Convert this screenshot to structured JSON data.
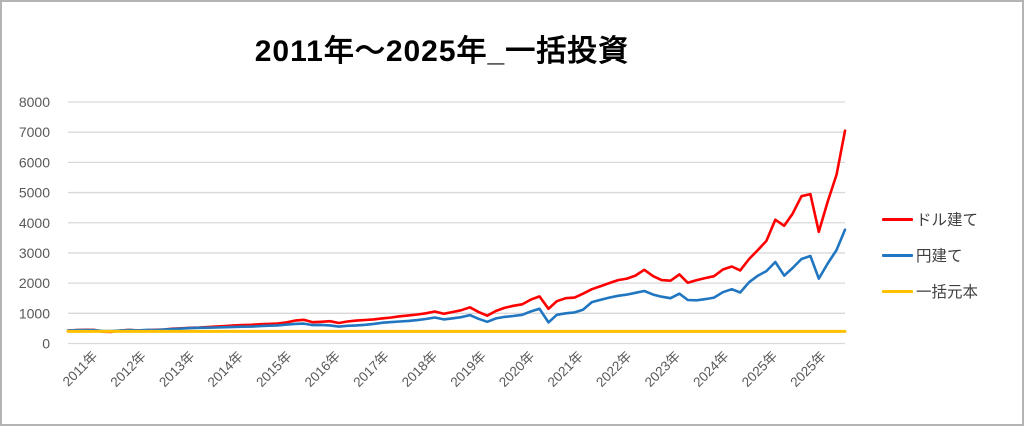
{
  "title": "2011年～2025年_一括投資",
  "colors": {
    "usd_line": "#ff0000",
    "jpy_line": "#2076c0",
    "principal_line": "#ffc000",
    "gridline": "#d9d9d9",
    "axis_text": "#595959",
    "legend_text": "#404040",
    "frame_border": "#b3b3b3",
    "background": "#ffffff"
  },
  "legend": {
    "items": [
      {
        "id": "usd",
        "label": "ドル建て",
        "color": "#ff0000"
      },
      {
        "id": "jpy",
        "label": "円建て",
        "color": "#2076c0"
      },
      {
        "id": "principal",
        "label": "一括元本",
        "color": "#ffc000"
      }
    ]
  },
  "chart_data": {
    "type": "line",
    "title": "2011年～2025年_一括投資",
    "xlabel": "",
    "ylabel": "",
    "ylim": [
      0,
      8000
    ],
    "y_ticks": [
      0,
      1000,
      2000,
      3000,
      4000,
      5000,
      6000,
      7000,
      8000
    ],
    "grid": "horizontal",
    "legend_position": "right",
    "x_tick_labels": [
      "2011年",
      "2012年",
      "2013年",
      "2014年",
      "2015年",
      "2016年",
      "2017年",
      "2018年",
      "2019年",
      "2020年",
      "2021年",
      "2022年",
      "2023年",
      "2024年",
      "2025年",
      "2025年"
    ],
    "x": [
      2011,
      2011.17,
      2011.33,
      2011.5,
      2011.67,
      2011.83,
      2012,
      2012.17,
      2012.33,
      2012.5,
      2012.67,
      2012.83,
      2013,
      2013.17,
      2013.33,
      2013.5,
      2013.67,
      2013.83,
      2014,
      2014.17,
      2014.33,
      2014.5,
      2014.67,
      2014.83,
      2015,
      2015.17,
      2015.33,
      2015.5,
      2015.67,
      2015.83,
      2016,
      2016.17,
      2016.33,
      2016.5,
      2016.67,
      2016.83,
      2017,
      2017.17,
      2017.33,
      2017.5,
      2017.67,
      2017.83,
      2018,
      2018.17,
      2018.33,
      2018.5,
      2018.67,
      2018.83,
      2019,
      2019.17,
      2019.33,
      2019.5,
      2019.67,
      2019.83,
      2020,
      2020.17,
      2020.33,
      2020.5,
      2020.67,
      2020.83,
      2021,
      2021.17,
      2021.33,
      2021.5,
      2021.67,
      2021.83,
      2022,
      2022.17,
      2022.33,
      2022.5,
      2022.67,
      2022.83,
      2023,
      2023.17,
      2023.33,
      2023.5,
      2023.67,
      2023.83,
      2024,
      2024.17,
      2024.33,
      2024.5,
      2024.67,
      2024.83,
      2025,
      2025.17,
      2025.33,
      2025.5,
      2025.67,
      2025.83
    ],
    "series": [
      {
        "id": "usd",
        "name": "ドル建て",
        "color": "#ff0000",
        "width": 2.6,
        "values": [
          430,
          445,
          455,
          450,
          390,
          385,
          430,
          450,
          435,
          440,
          455,
          460,
          490,
          505,
          520,
          530,
          545,
          560,
          580,
          600,
          610,
          620,
          640,
          650,
          660,
          700,
          760,
          785,
          705,
          720,
          740,
          680,
          730,
          760,
          780,
          800,
          830,
          860,
          900,
          930,
          960,
          1000,
          1060,
          985,
          1040,
          1100,
          1200,
          1050,
          920,
          1080,
          1180,
          1250,
          1300,
          1450,
          1560,
          1150,
          1400,
          1500,
          1520,
          1650,
          1800,
          1900,
          2000,
          2100,
          2150,
          2250,
          2440,
          2230,
          2100,
          2080,
          2290,
          2010,
          2100,
          2170,
          2230,
          2450,
          2550,
          2420,
          2800,
          3100,
          3400,
          4100,
          3900,
          4300,
          4880,
          4950,
          3700,
          4700,
          5600,
          7050
        ]
      },
      {
        "id": "jpy",
        "name": "円建て",
        "color": "#2076c0",
        "width": 2.6,
        "values": [
          430,
          440,
          445,
          440,
          415,
          410,
          430,
          445,
          435,
          450,
          445,
          460,
          480,
          495,
          510,
          520,
          525,
          530,
          540,
          550,
          555,
          560,
          575,
          590,
          600,
          625,
          650,
          660,
          610,
          615,
          600,
          560,
          585,
          600,
          620,
          650,
          690,
          710,
          730,
          750,
          775,
          810,
          860,
          800,
          830,
          870,
          940,
          820,
          720,
          830,
          880,
          910,
          950,
          1060,
          1150,
          700,
          950,
          1000,
          1030,
          1120,
          1370,
          1450,
          1520,
          1580,
          1620,
          1680,
          1740,
          1620,
          1550,
          1500,
          1650,
          1440,
          1430,
          1470,
          1520,
          1700,
          1800,
          1690,
          2030,
          2250,
          2400,
          2700,
          2250,
          2500,
          2800,
          2900,
          2150,
          2650,
          3100,
          3770
        ]
      },
      {
        "id": "principal",
        "name": "一括元本",
        "color": "#ffc000",
        "width": 3,
        "x": [
          2011,
          2025.83
        ],
        "values": [
          400,
          400
        ]
      }
    ]
  }
}
